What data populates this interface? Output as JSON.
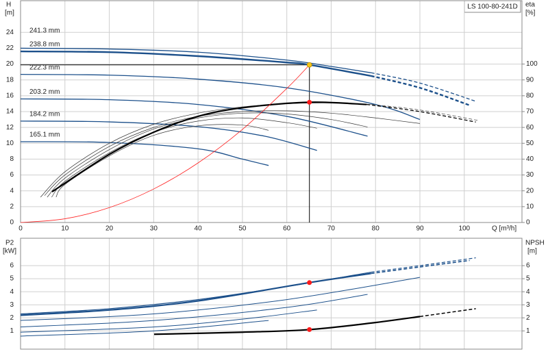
{
  "chart_data": [
    {
      "type": "line",
      "title": "LS 100-80-241D",
      "y_label": "H",
      "y_unit": "[m]",
      "y2_label": "eta",
      "y2_unit": "[%]",
      "x_label": "Q [m³/h]",
      "xlim": [
        0,
        113
      ],
      "xticks": [
        0,
        10,
        20,
        30,
        40,
        50,
        60,
        70,
        80,
        90,
        100
      ],
      "ylim": [
        0,
        28
      ],
      "yticks": [
        0,
        2,
        4,
        6,
        8,
        10,
        12,
        14,
        16,
        18,
        20,
        22,
        24
      ],
      "y2lim": [
        0,
        140
      ],
      "y2ticks": [
        0,
        10,
        20,
        30,
        40,
        50,
        60,
        70,
        80,
        90,
        100
      ],
      "grid": true,
      "series": [
        {
          "name": "241.3 mm",
          "color": "#1b4f8a",
          "width": 1.3,
          "x": [
            0,
            20,
            40,
            60,
            70,
            79
          ],
          "values": [
            22.0,
            21.9,
            21.5,
            20.5,
            19.7,
            18.9
          ]
        },
        {
          "color": "#1b4f8a",
          "width": 1.3,
          "dashed": true,
          "x": [
            79,
            90,
            102.6
          ],
          "values": [
            18.9,
            17.6,
            15.3
          ]
        },
        {
          "name": "238.8 mm",
          "color": "#1b4f8a",
          "width": 2.4,
          "x": [
            0,
            20,
            40,
            60,
            65.1,
            79
          ],
          "values": [
            21.6,
            21.5,
            21.0,
            20.2,
            19.9,
            18.5
          ]
        },
        {
          "color": "#1b4f8a",
          "width": 2.4,
          "dashed": true,
          "x": [
            79,
            90,
            101.2
          ],
          "values": [
            18.5,
            17.0,
            14.8
          ]
        },
        {
          "name": "222.3 mm",
          "color": "#1b4f8a",
          "width": 1.3,
          "x": [
            0,
            20,
            40,
            60,
            80,
            90
          ],
          "values": [
            18.7,
            18.6,
            18.1,
            17.0,
            14.9,
            13.0
          ]
        },
        {
          "name": "203.2 mm",
          "color": "#1b4f8a",
          "width": 1.3,
          "x": [
            0,
            20,
            40,
            60,
            78.2
          ],
          "values": [
            15.6,
            15.5,
            14.9,
            13.4,
            10.9
          ]
        },
        {
          "name": "184.2 mm",
          "color": "#1b4f8a",
          "width": 1.3,
          "x": [
            0,
            20,
            40,
            55,
            66.8
          ],
          "values": [
            12.8,
            12.7,
            12.1,
            10.9,
            9.1
          ]
        },
        {
          "name": "165.1 mm",
          "color": "#1b4f8a",
          "width": 1.3,
          "x": [
            0,
            20,
            40,
            50,
            55.9
          ],
          "values": [
            10.2,
            10.1,
            9.3,
            8.0,
            7.2
          ]
        },
        {
          "color": "#333333",
          "width": 0.7,
          "axis": "y2",
          "x": [
            4.5,
            10,
            20,
            30,
            40,
            50,
            60,
            70,
            79
          ],
          "values": [
            16,
            32,
            50,
            62,
            69,
            73,
            75,
            75.5,
            74.5
          ]
        },
        {
          "color": "#333333",
          "width": 0.7,
          "axis": "y2",
          "dashed": true,
          "x": [
            79,
            90,
            103
          ],
          "values": [
            74.5,
            71,
            64.5
          ]
        },
        {
          "color": "#333333",
          "width": 0.7,
          "axis": "y2",
          "x": [
            5.4,
            10,
            20,
            30,
            40,
            50,
            60,
            70,
            80,
            90
          ],
          "values": [
            17,
            30,
            48,
            60,
            67,
            70,
            70.5,
            69,
            66,
            62.5
          ]
        },
        {
          "color": "#333333",
          "width": 0.7,
          "axis": "y2",
          "x": [
            6,
            10,
            20,
            30,
            40,
            50,
            60,
            70,
            78.2
          ],
          "values": [
            16,
            28,
            46,
            59,
            66,
            69,
            68.5,
            65,
            60.3
          ]
        },
        {
          "color": "#333333",
          "width": 0.7,
          "axis": "y2",
          "x": [
            7,
            10,
            20,
            30,
            40,
            50,
            60,
            66.8
          ],
          "values": [
            16,
            26,
            44,
            57,
            64,
            66,
            63,
            59.5
          ]
        },
        {
          "color": "#333333",
          "width": 0.7,
          "axis": "y2",
          "x": [
            8,
            10,
            20,
            30,
            40,
            50,
            55.9
          ],
          "values": [
            16,
            24,
            42,
            55,
            61,
            61.5,
            58.2
          ]
        },
        {
          "color": "#000000",
          "width": 2.2,
          "axis": "y2",
          "x": [
            7.1,
            20,
            30,
            40,
            50,
            65.1,
            78
          ],
          "values": [
            19.4,
            43,
            57,
            67,
            72.4,
            75.9,
            74.5
          ]
        },
        {
          "color": "#000000",
          "width": 1.3,
          "axis": "y2",
          "dashed": true,
          "x": [
            78,
            90,
            102.6
          ],
          "values": [
            74.5,
            70,
            63.4
          ]
        },
        {
          "color": "#ff2020",
          "width": 0.8,
          "x": [
            0,
            10,
            20,
            30,
            40,
            50,
            60,
            65.1
          ],
          "values": [
            0,
            0.47,
            1.88,
            4.23,
            7.52,
            11.75,
            16.92,
            19.9
          ]
        }
      ],
      "markers": [
        {
          "x": 65.1,
          "value": 19.9,
          "color": "#f5c518",
          "crosshair": true
        },
        {
          "x": 65.1,
          "value": 75.9,
          "axis": "y2",
          "color": "#ff1a1a"
        }
      ]
    },
    {
      "type": "line",
      "y_label": "P2",
      "y_unit": "[kW]",
      "y2_label": "NPSH",
      "y2_unit": "[m]",
      "xlim": [
        0,
        113
      ],
      "xticks": [
        0,
        10,
        20,
        30,
        40,
        50,
        60,
        70,
        80,
        90,
        100
      ],
      "ylim": [
        -0.4,
        8.1
      ],
      "yticks": [
        1,
        2,
        3,
        4,
        5,
        6
      ],
      "y2lim": [
        -0.4,
        8.1
      ],
      "y2ticks": [
        1,
        2,
        3,
        4,
        5,
        6
      ],
      "grid": true,
      "series": [
        {
          "color": "#1b4f8a",
          "width": 1.2,
          "x": [
            0,
            20,
            40,
            60,
            79
          ],
          "values": [
            2.3,
            2.7,
            3.4,
            4.4,
            5.5
          ]
        },
        {
          "color": "#1b4f8a",
          "width": 1.2,
          "dashed": true,
          "x": [
            79,
            90,
            102.6
          ],
          "values": [
            5.5,
            6.0,
            6.6
          ]
        },
        {
          "color": "#1b4f8a",
          "width": 2.2,
          "x": [
            0,
            20,
            40,
            65.1,
            79
          ],
          "values": [
            2.2,
            2.6,
            3.3,
            4.7,
            5.4
          ]
        },
        {
          "color": "#1b4f8a",
          "width": 1.6,
          "dashed": true,
          "x": [
            79,
            90,
            101.2
          ],
          "values": [
            5.4,
            5.9,
            6.4
          ]
        },
        {
          "color": "#1b4f8a",
          "width": 1.0,
          "x": [
            0,
            30,
            60,
            90
          ],
          "values": [
            1.8,
            2.3,
            3.4,
            5.1
          ]
        },
        {
          "color": "#1b4f8a",
          "width": 1.0,
          "x": [
            0,
            30,
            60,
            78.2
          ],
          "values": [
            1.3,
            1.8,
            2.8,
            3.8
          ]
        },
        {
          "color": "#1b4f8a",
          "width": 1.0,
          "x": [
            0,
            30,
            50,
            66.8
          ],
          "values": [
            0.9,
            1.3,
            1.9,
            2.6
          ]
        },
        {
          "color": "#1b4f8a",
          "width": 1.0,
          "x": [
            0,
            30,
            55.9
          ],
          "values": [
            0.6,
            1.0,
            1.8
          ]
        },
        {
          "color": "#000000",
          "width": 2.2,
          "axis": "y2",
          "x": [
            30.1,
            50,
            65.1,
            79,
            90
          ],
          "values": [
            0.74,
            0.9,
            1.1,
            1.6,
            2.1
          ]
        },
        {
          "color": "#000000",
          "width": 1.5,
          "axis": "y2",
          "dashed": true,
          "x": [
            90,
            102.6
          ],
          "values": [
            2.1,
            2.7
          ]
        }
      ],
      "markers": [
        {
          "x": 65.1,
          "value": 4.7,
          "color": "#ff1a1a"
        },
        {
          "x": 65.1,
          "value": 1.1,
          "axis": "y2",
          "color": "#ff1a1a"
        }
      ]
    }
  ]
}
